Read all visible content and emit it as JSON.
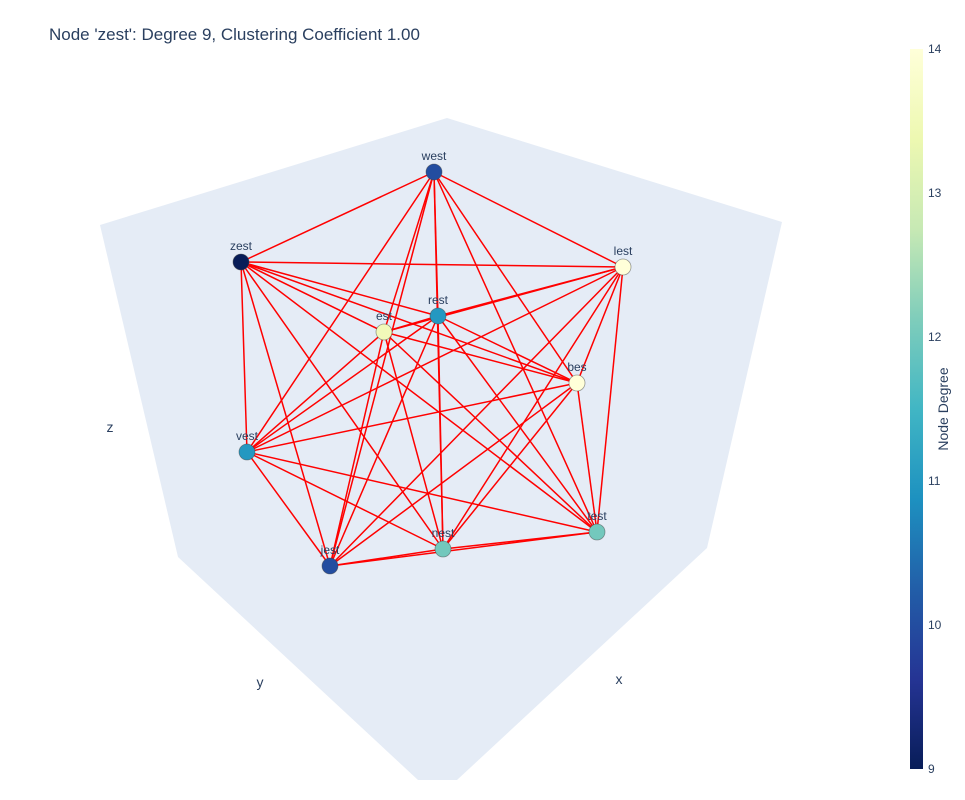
{
  "title": "Node 'zest': Degree 9, Clustering Coefficient 1.00",
  "colors": {
    "edge": "#ff0000",
    "scene_bg": "#e5ecf6",
    "text": "#2a3f5f"
  },
  "chart_data": {
    "type": "scatter3d-network",
    "title": "Node 'zest': Degree 9, Clustering Coefficient 1.00",
    "axis_labels": {
      "x": "x",
      "y": "y",
      "z": "z"
    },
    "colorscale": "YlGnBu (reversed)",
    "colorbar": {
      "title": "Node Degree",
      "range": [
        9,
        14
      ],
      "ticks": [
        9,
        10,
        11,
        12,
        13,
        14
      ]
    },
    "nodes": [
      {
        "name": "west",
        "degree": 10
      },
      {
        "name": "zest",
        "degree": 9
      },
      {
        "name": "lest",
        "degree": 14
      },
      {
        "name": "rest",
        "degree": 11
      },
      {
        "name": "est",
        "degree": 13.5
      },
      {
        "name": "bes",
        "degree": 14
      },
      {
        "name": "vest",
        "degree": 11
      },
      {
        "name": "test",
        "degree": 12
      },
      {
        "name": "nest",
        "degree": 12
      },
      {
        "name": "jest",
        "degree": 10
      }
    ],
    "edges": [
      [
        "zest",
        "west"
      ],
      [
        "zest",
        "lest"
      ],
      [
        "zest",
        "rest"
      ],
      [
        "zest",
        "est"
      ],
      [
        "zest",
        "bes"
      ],
      [
        "zest",
        "vest"
      ],
      [
        "zest",
        "test"
      ],
      [
        "zest",
        "nest"
      ],
      [
        "zest",
        "jest"
      ],
      [
        "west",
        "rest"
      ],
      [
        "west",
        "est"
      ],
      [
        "west",
        "bes"
      ],
      [
        "west",
        "vest"
      ],
      [
        "west",
        "test"
      ],
      [
        "west",
        "nest"
      ],
      [
        "west",
        "jest"
      ],
      [
        "west",
        "lest"
      ],
      [
        "lest",
        "est"
      ],
      [
        "lest",
        "rest"
      ],
      [
        "lest",
        "vest"
      ],
      [
        "lest",
        "jest"
      ],
      [
        "lest",
        "test"
      ],
      [
        "lest",
        "nest"
      ],
      [
        "lest",
        "bes"
      ],
      [
        "rest",
        "bes"
      ],
      [
        "rest",
        "test"
      ],
      [
        "rest",
        "vest"
      ],
      [
        "rest",
        "jest"
      ],
      [
        "rest",
        "nest"
      ],
      [
        "rest",
        "est"
      ],
      [
        "est",
        "bes"
      ],
      [
        "est",
        "jest"
      ],
      [
        "est",
        "test"
      ],
      [
        "est",
        "nest"
      ],
      [
        "est",
        "vest"
      ],
      [
        "bes",
        "vest"
      ],
      [
        "bes",
        "jest"
      ],
      [
        "bes",
        "test"
      ],
      [
        "bes",
        "nest"
      ],
      [
        "vest",
        "test"
      ],
      [
        "vest",
        "jest"
      ],
      [
        "vest",
        "nest"
      ],
      [
        "jest",
        "test"
      ],
      [
        "jest",
        "nest"
      ],
      [
        "nest",
        "test"
      ]
    ]
  }
}
